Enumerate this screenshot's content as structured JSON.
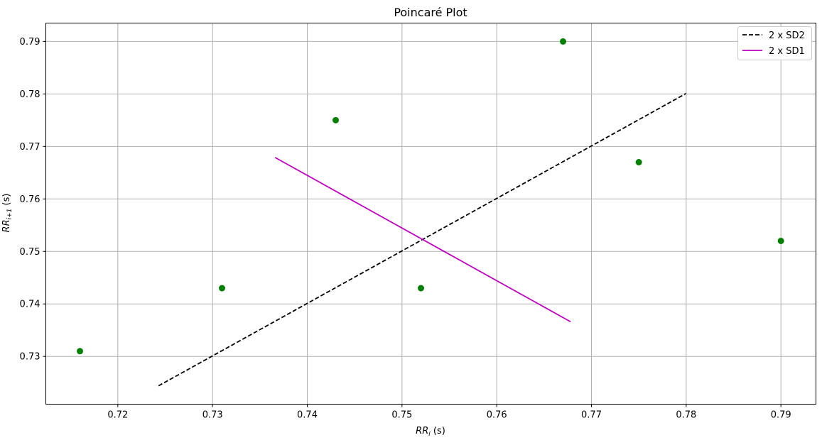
{
  "chart_data": {
    "type": "scatter",
    "title": "Poincaré Plot",
    "xlabel_main": "RR",
    "xlabel_sub": "i",
    "xlabel_unit": " (s)",
    "ylabel_main": "RR",
    "ylabel_sub": "i+1",
    "ylabel_unit": " (s)",
    "xlim": [
      0.7124,
      0.7937
    ],
    "ylim": [
      0.7209,
      0.7935
    ],
    "xticks": [
      0.72,
      0.73,
      0.74,
      0.75,
      0.76,
      0.77,
      0.78,
      0.79
    ],
    "xtick_labels": [
      "0.72",
      "0.73",
      "0.74",
      "0.75",
      "0.76",
      "0.77",
      "0.78",
      "0.79"
    ],
    "yticks": [
      0.73,
      0.74,
      0.75,
      0.76,
      0.77,
      0.78,
      0.79
    ],
    "ytick_labels": [
      "0.73",
      "0.74",
      "0.75",
      "0.76",
      "0.77",
      "0.78",
      "0.79"
    ],
    "grid": true,
    "legend_position": "top-right",
    "points": {
      "color": "#008000",
      "x": [
        0.716,
        0.731,
        0.743,
        0.752,
        0.767,
        0.775,
        0.79
      ],
      "y": [
        0.731,
        0.743,
        0.775,
        0.743,
        0.79,
        0.767,
        0.752
      ]
    },
    "series": [
      {
        "name": "2 x SD2",
        "color": "#000000",
        "dash": "dashed",
        "x": [
          0.7243,
          0.78
        ],
        "y": [
          0.7244,
          0.7801
        ]
      },
      {
        "name": "2 x SD1",
        "color": "#bf00bf",
        "dash": "solid",
        "x": [
          0.7366,
          0.7678
        ],
        "y": [
          0.7679,
          0.7366
        ]
      }
    ]
  }
}
